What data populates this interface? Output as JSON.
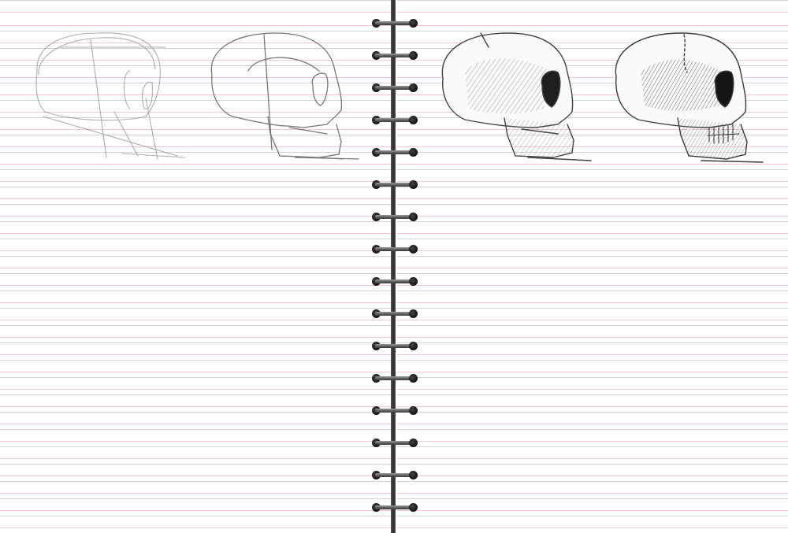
{
  "notebook": {
    "colors": {
      "paper": "#ffffff",
      "rule_line_pink": "#f4c9d3",
      "rule_line_gray": "#cfd4dc",
      "spine": "#3a3a3a",
      "pencil": "#555555"
    },
    "spiral": {
      "ring_count": 16,
      "icon": "spiral-ring-icon"
    },
    "sketches": [
      {
        "name": "skull-sketch-step-1",
        "stage": 1,
        "description_icon": "skull-construction-icon"
      },
      {
        "name": "skull-sketch-step-2",
        "stage": 2,
        "description_icon": "skull-outline-icon"
      },
      {
        "name": "skull-sketch-step-3",
        "stage": 3,
        "description_icon": "skull-shaded-icon"
      },
      {
        "name": "skull-sketch-step-4",
        "stage": 4,
        "description_icon": "skull-detailed-icon"
      }
    ]
  }
}
